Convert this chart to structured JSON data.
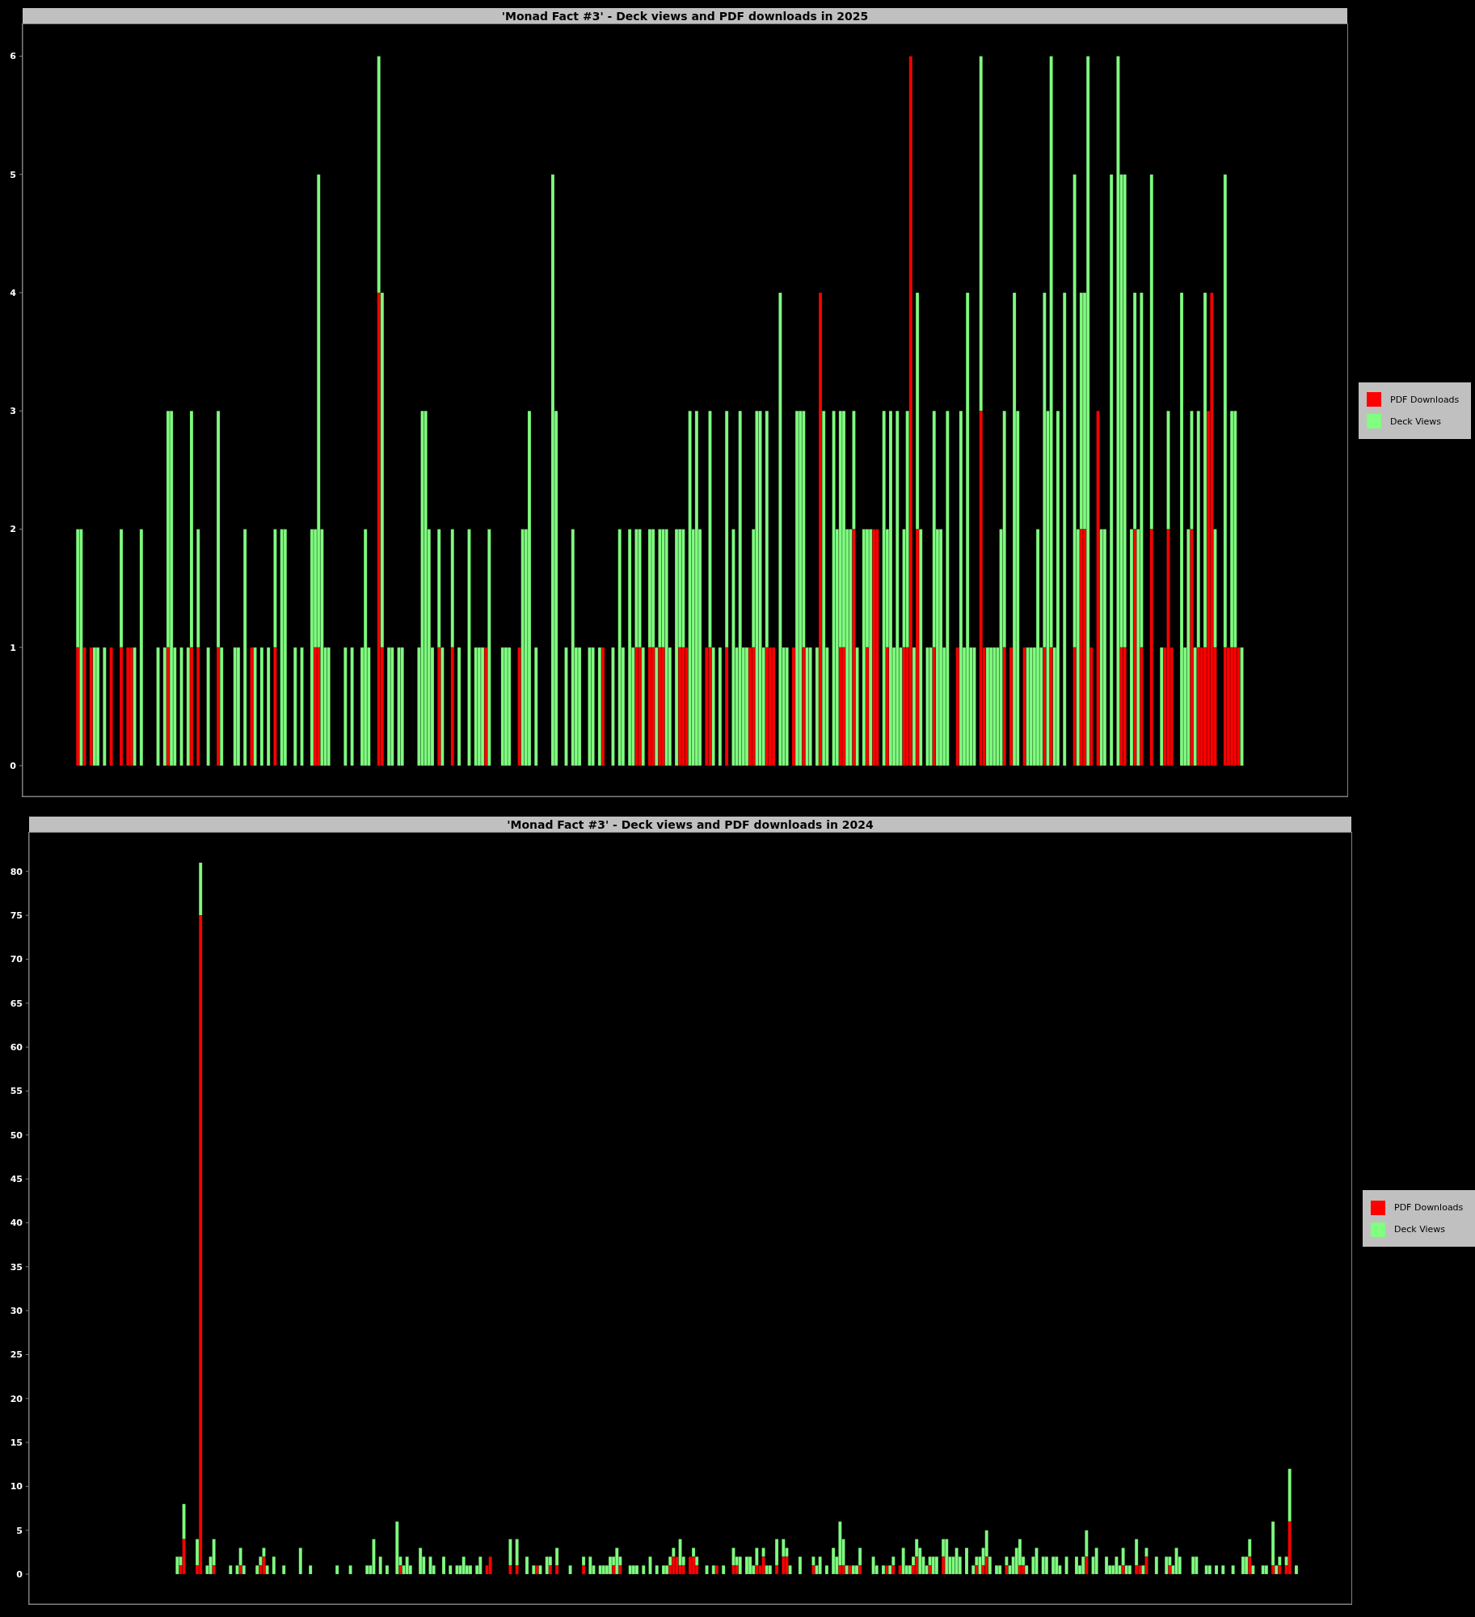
{
  "chart_data": [
    {
      "type": "bar",
      "title": "'Monad Fact #3' - Deck views and PDF downloads in 2025",
      "categories": [
        null,
        null,
        null,
        null,
        null,
        null,
        null,
        null,
        null,
        null,
        null,
        null,
        null,
        null,
        null,
        null,
        null,
        null,
        null,
        null,
        null,
        null,
        null,
        null,
        null,
        null,
        null,
        null,
        null,
        null,
        null,
        null,
        null,
        null,
        null,
        null,
        null,
        null,
        null,
        null,
        null,
        null,
        null,
        null,
        null,
        null,
        null,
        null,
        null,
        null,
        null,
        null,
        null,
        null,
        null,
        null,
        null,
        null,
        null,
        null,
        null,
        null,
        null,
        null,
        null,
        null,
        null,
        null,
        null,
        null,
        null,
        null,
        null,
        null,
        null,
        null,
        null,
        null,
        null,
        null,
        null,
        null,
        null,
        null,
        null,
        null,
        null,
        null,
        null,
        null,
        null,
        null,
        null,
        null,
        null,
        null,
        null,
        null,
        null,
        null,
        null,
        null,
        null,
        null,
        null,
        null,
        null,
        null,
        null,
        null,
        null,
        null,
        null,
        null,
        null,
        null,
        null,
        null,
        null,
        null,
        null,
        null,
        null,
        null,
        null,
        null,
        null,
        null,
        null,
        null,
        null,
        null,
        null,
        null,
        null,
        null,
        null,
        null,
        null,
        null,
        null,
        null,
        null,
        null,
        null,
        null,
        null,
        null,
        null,
        null,
        null,
        null,
        null,
        null,
        null,
        null,
        null,
        null,
        null,
        null,
        null,
        null,
        null,
        null,
        null,
        null,
        null,
        null,
        null,
        null,
        null,
        null,
        null,
        null,
        null,
        null,
        null,
        null,
        null,
        null,
        null,
        null,
        null,
        null,
        null,
        null,
        null,
        null,
        null,
        null,
        null,
        null,
        null,
        null,
        null,
        null,
        null,
        null,
        null,
        null,
        null,
        null,
        null,
        null,
        null,
        null,
        null,
        null,
        null,
        null,
        null,
        null,
        null,
        null,
        null,
        null,
        null,
        null,
        null,
        null,
        null,
        null,
        null,
        null,
        null,
        null,
        null,
        null,
        null,
        null,
        null,
        null,
        null,
        null,
        null,
        null,
        null,
        null,
        null,
        null,
        null,
        null,
        null,
        null,
        null,
        null,
        null,
        null,
        null,
        null,
        null,
        null,
        null,
        null,
        null,
        null,
        null,
        null,
        null,
        null,
        null,
        null,
        null,
        null,
        null,
        null,
        null,
        null,
        null,
        null,
        null,
        null,
        null,
        null,
        null,
        null,
        null,
        null,
        null,
        null,
        null,
        null,
        null,
        null,
        null,
        null,
        null,
        null,
        null,
        null,
        null,
        null,
        null,
        null,
        null,
        null,
        null,
        null,
        null,
        null,
        null,
        null,
        null,
        null,
        null,
        null,
        null,
        null,
        null,
        null,
        null,
        null,
        null,
        null,
        null,
        null,
        null,
        null,
        null,
        null,
        null,
        null,
        null,
        null,
        null,
        null,
        null,
        null,
        null,
        null,
        null,
        null,
        null,
        null,
        null,
        null,
        null,
        null,
        null,
        null,
        null,
        null,
        null,
        null,
        null,
        null,
        null,
        null,
        null,
        null,
        null,
        null,
        null,
        null,
        null,
        null,
        null,
        null,
        null,
        null,
        null,
        null,
        null,
        null,
        null,
        null,
        null,
        null,
        null,
        null,
        null,
        null,
        null,
        null,
        null,
        null,
        null,
        null,
        null,
        null,
        null,
        null,
        null,
        null,
        null,
        null,
        null,
        null,
        null,
        null,
        null,
        null,
        null,
        null,
        null,
        null
      ],
      "series": [
        {
          "name": "PDF Downloads",
          "color": "#ff0000",
          "values": [
            null,
            null,
            null,
            null,
            null,
            null,
            null,
            null,
            null,
            null,
            null,
            null,
            null,
            null,
            null,
            null,
            1,
            0,
            1,
            0,
            1,
            0,
            0,
            0,
            0,
            0,
            1,
            0,
            0,
            1,
            0,
            1,
            1,
            0,
            0,
            0,
            0,
            0,
            0,
            0,
            0,
            0,
            0,
            1,
            0,
            0,
            0,
            0,
            0,
            0,
            1,
            0,
            1,
            0,
            0,
            0,
            0,
            0,
            1,
            0,
            0,
            0,
            0,
            0,
            0,
            0,
            0,
            0,
            1,
            0,
            0,
            0,
            0,
            0,
            0,
            1,
            0,
            0,
            0,
            0,
            0,
            0,
            0,
            0,
            0,
            0,
            0,
            1,
            1,
            0,
            0,
            0,
            0,
            0,
            0,
            0,
            0,
            0,
            0,
            0,
            0,
            0,
            0,
            0,
            0,
            0,
            4,
            1,
            0,
            0,
            0,
            0,
            0,
            0,
            0,
            0,
            0,
            0,
            0,
            0,
            0,
            0,
            0,
            0,
            1,
            0,
            0,
            0,
            1,
            0,
            0,
            0,
            0,
            0,
            0,
            0,
            0,
            0,
            1,
            0,
            0,
            0,
            0,
            0,
            0,
            0,
            0,
            0,
            1,
            0,
            0,
            0,
            0,
            0,
            0,
            0,
            0,
            0,
            0,
            0,
            0,
            0,
            0,
            0,
            0,
            0,
            0,
            0,
            0,
            0,
            0,
            0,
            0,
            1,
            0,
            0,
            0,
            0,
            0,
            0,
            0,
            0,
            0,
            1,
            1,
            0,
            0,
            1,
            1,
            0,
            1,
            1,
            0,
            0,
            0,
            0,
            1,
            1,
            1,
            0,
            0,
            0,
            0,
            0,
            1,
            1,
            0,
            0,
            0,
            0,
            1,
            0,
            0,
            0,
            0,
            0,
            0,
            1,
            1,
            0,
            0,
            0,
            1,
            1,
            1,
            0,
            0,
            0,
            0,
            0,
            1,
            0,
            0,
            1,
            0,
            0,
            0,
            0,
            4,
            0,
            0,
            0,
            0,
            0,
            1,
            1,
            0,
            0,
            2,
            0,
            0,
            0,
            1,
            0,
            2,
            2,
            0,
            0,
            1,
            0,
            0,
            0,
            0,
            1,
            1,
            6,
            0,
            2,
            0,
            0,
            0,
            0,
            1,
            0,
            0,
            0,
            0,
            0,
            0,
            1,
            0,
            0,
            0,
            0,
            0,
            0,
            3,
            1,
            0,
            0,
            0,
            0,
            0,
            1,
            0,
            1,
            0,
            0,
            0,
            1,
            0,
            0,
            0,
            0,
            0,
            1,
            0,
            1,
            0,
            0,
            0,
            0,
            0,
            0,
            1,
            0,
            2,
            2,
            0,
            1,
            0,
            3,
            0,
            0,
            0,
            0,
            0,
            0,
            1,
            1,
            0,
            0,
            2,
            0,
            1,
            0,
            0,
            2,
            0,
            0,
            0,
            1,
            2,
            1,
            0,
            0,
            0,
            0,
            0,
            2,
            0,
            1,
            1,
            1,
            3,
            4,
            1,
            0,
            0,
            1,
            1,
            1,
            1,
            1,
            0,
            null,
            null,
            null,
            null,
            null,
            null,
            null,
            null,
            null,
            null,
            null,
            null,
            null,
            null,
            null,
            null,
            null,
            null,
            null,
            null,
            null,
            null,
            null,
            null,
            null,
            null,
            null,
            null,
            null,
            null,
            null
          ]
        },
        {
          "name": "Deck Views",
          "color": "#80ff80",
          "values": [
            null,
            null,
            null,
            null,
            null,
            null,
            null,
            null,
            null,
            null,
            null,
            null,
            null,
            null,
            null,
            null,
            1,
            2,
            0,
            0,
            0,
            1,
            1,
            0,
            1,
            0,
            0,
            0,
            0,
            1,
            0,
            0,
            0,
            1,
            0,
            2,
            0,
            0,
            0,
            0,
            1,
            0,
            1,
            2,
            3,
            1,
            0,
            1,
            0,
            1,
            2,
            0,
            1,
            0,
            0,
            1,
            0,
            0,
            2,
            1,
            0,
            0,
            0,
            1,
            1,
            0,
            2,
            0,
            0,
            1,
            0,
            1,
            0,
            1,
            0,
            1,
            0,
            2,
            2,
            0,
            0,
            1,
            0,
            1,
            0,
            0,
            2,
            1,
            4,
            2,
            1,
            1,
            0,
            0,
            0,
            0,
            1,
            0,
            1,
            0,
            0,
            1,
            2,
            1,
            0,
            0,
            2,
            3,
            0,
            1,
            1,
            0,
            1,
            1,
            0,
            0,
            0,
            0,
            1,
            3,
            3,
            2,
            1,
            0,
            1,
            1,
            0,
            0,
            1,
            0,
            1,
            0,
            0,
            2,
            0,
            1,
            1,
            1,
            0,
            2,
            0,
            0,
            0,
            1,
            1,
            1,
            0,
            0,
            0,
            2,
            2,
            3,
            0,
            1,
            0,
            0,
            0,
            0,
            5,
            3,
            0,
            0,
            1,
            0,
            2,
            1,
            1,
            0,
            0,
            1,
            1,
            0,
            1,
            0,
            0,
            0,
            1,
            0,
            2,
            1,
            0,
            2,
            1,
            1,
            1,
            1,
            0,
            1,
            1,
            1,
            1,
            1,
            2,
            1,
            0,
            2,
            1,
            1,
            0,
            3,
            2,
            3,
            2,
            0,
            0,
            2,
            1,
            0,
            1,
            0,
            2,
            0,
            2,
            1,
            3,
            1,
            1,
            0,
            1,
            3,
            3,
            1,
            2,
            0,
            0,
            0,
            4,
            1,
            1,
            0,
            0,
            3,
            3,
            2,
            1,
            1,
            0,
            1,
            0,
            3,
            1,
            0,
            3,
            2,
            2,
            2,
            2,
            2,
            1,
            1,
            0,
            2,
            1,
            2,
            0,
            0,
            0,
            3,
            1,
            3,
            1,
            3,
            1,
            1,
            2,
            0,
            1,
            2,
            2,
            0,
            1,
            1,
            2,
            2,
            2,
            1,
            3,
            0,
            0,
            0,
            3,
            1,
            4,
            1,
            1,
            0,
            3,
            0,
            1,
            1,
            1,
            1,
            2,
            2,
            0,
            0,
            4,
            3,
            0,
            0,
            1,
            1,
            1,
            2,
            1,
            3,
            3,
            5,
            1,
            3,
            0,
            4,
            0,
            0,
            4,
            2,
            2,
            2,
            6,
            0,
            0,
            0,
            2,
            2,
            0,
            5,
            0,
            6,
            4,
            4,
            0,
            2,
            2,
            2,
            3,
            0,
            0,
            3,
            0,
            0,
            1,
            0,
            1,
            0,
            0,
            0,
            4,
            1,
            2,
            1,
            1,
            2,
            0,
            3,
            0,
            0,
            1,
            0,
            0,
            4,
            0,
            2,
            2,
            0,
            1,
            null,
            null,
            null,
            null,
            null,
            null,
            null,
            null,
            null,
            null,
            null,
            null,
            null,
            null,
            null,
            null,
            null,
            null,
            null,
            null,
            null,
            null,
            null,
            null,
            null,
            null,
            null,
            null,
            null,
            null,
            null
          ]
        }
      ],
      "stacked": true,
      "ylim": [
        -0.26,
        6.27
      ],
      "yticks": [
        0,
        1,
        2,
        3,
        4,
        5,
        6
      ],
      "tick_labels": "y",
      "legend": "right"
    },
    {
      "type": "bar",
      "title": "'Monad Fact #3' - Deck views and PDF downloads in 2024",
      "categories": [
        null,
        null,
        null,
        null,
        null,
        null,
        null,
        null,
        null,
        null,
        null,
        null,
        null,
        null,
        null,
        null,
        null,
        null,
        null,
        null,
        null,
        null,
        null,
        null,
        null,
        null,
        null,
        null,
        null,
        null,
        null,
        null,
        null,
        null,
        null,
        null,
        null,
        null,
        null,
        null,
        null,
        null,
        null,
        null,
        null,
        null,
        null,
        null,
        null,
        null,
        null,
        null,
        null,
        null,
        null,
        null,
        null,
        null,
        null,
        null,
        null,
        null,
        null,
        null,
        null,
        null,
        null,
        null,
        null,
        null,
        null,
        null,
        null,
        null,
        null,
        null,
        null,
        null,
        null,
        null,
        null,
        null,
        null,
        null,
        null,
        null,
        null,
        null,
        null,
        null,
        null,
        null,
        null,
        null,
        null,
        null,
        null,
        null,
        null,
        null,
        null,
        null,
        null,
        null,
        null,
        null,
        null,
        null,
        null,
        null,
        null,
        null,
        null,
        null,
        null,
        null,
        null,
        null,
        null,
        null,
        null,
        null,
        null,
        null,
        null,
        null,
        null,
        null,
        null,
        null,
        null,
        null,
        null,
        null,
        null,
        null,
        null,
        null,
        null,
        null,
        null,
        null,
        null,
        null,
        null,
        null,
        null,
        null,
        null,
        null,
        null,
        null,
        null,
        null,
        null,
        null,
        null,
        null,
        null,
        null,
        null,
        null,
        null,
        null,
        null,
        null,
        null,
        null,
        null,
        null,
        null,
        null,
        null,
        null,
        null,
        null,
        null,
        null,
        null,
        null,
        null,
        null,
        null,
        null,
        null,
        null,
        null,
        null,
        null,
        null,
        null,
        null,
        null,
        null,
        null,
        null,
        null,
        null,
        null,
        null,
        null,
        null,
        null,
        null,
        null,
        null,
        null,
        null,
        null,
        null,
        null,
        null,
        null,
        null,
        null,
        null,
        null,
        null,
        null,
        null,
        null,
        null,
        null,
        null,
        null,
        null,
        null,
        null,
        null,
        null,
        null,
        null,
        null,
        null,
        null,
        null,
        null,
        null,
        null,
        null,
        null,
        null,
        null,
        null,
        null,
        null,
        null,
        null,
        null,
        null,
        null,
        null,
        null,
        null,
        null,
        null,
        null,
        null,
        null,
        null,
        null,
        null,
        null,
        null,
        null,
        null,
        null,
        null,
        null,
        null,
        null,
        null,
        null,
        null,
        null,
        null,
        null,
        null,
        null,
        null,
        null,
        null,
        null,
        null,
        null,
        null,
        null,
        null,
        null,
        null,
        null,
        null,
        null,
        null,
        null,
        null,
        null,
        null,
        null,
        null,
        null,
        null,
        null,
        null,
        null,
        null,
        null,
        null,
        null,
        null,
        null,
        null,
        null,
        null,
        null,
        null,
        null,
        null,
        null,
        null,
        null,
        null,
        null,
        null,
        null,
        null,
        null,
        null,
        null,
        null,
        null,
        null,
        null,
        null,
        null,
        null,
        null,
        null,
        null,
        null,
        null,
        null,
        null,
        null,
        null,
        null,
        null,
        null,
        null,
        null,
        null,
        null,
        null,
        null,
        null,
        null,
        null,
        null,
        null,
        null,
        null,
        null,
        null,
        null,
        null,
        null,
        null,
        null,
        null,
        null,
        null,
        null,
        null,
        null,
        null,
        null,
        null,
        null,
        null,
        null,
        null,
        null,
        null,
        null,
        null,
        null,
        null,
        null,
        null,
        null,
        null,
        null,
        null,
        null,
        null,
        null,
        null
      ],
      "series": [
        {
          "name": "PDF Downloads",
          "color": "#ff0000",
          "values": [
            null,
            null,
            null,
            null,
            null,
            null,
            null,
            null,
            null,
            null,
            null,
            null,
            null,
            null,
            null,
            null,
            null,
            null,
            null,
            null,
            null,
            null,
            null,
            null,
            null,
            null,
            null,
            null,
            null,
            null,
            null,
            null,
            null,
            null,
            null,
            null,
            null,
            null,
            null,
            null,
            null,
            null,
            null,
            null,
            0,
            1,
            4,
            0,
            0,
            0,
            1,
            75,
            0,
            0,
            0,
            1,
            0,
            0,
            0,
            0,
            0,
            0,
            0,
            1,
            0,
            0,
            0,
            0,
            0,
            1,
            2,
            0,
            0,
            0,
            0,
            0,
            0,
            0,
            0,
            0,
            0,
            0,
            0,
            0,
            0,
            0,
            0,
            0,
            0,
            0,
            0,
            0,
            0,
            0,
            0,
            0,
            0,
            0,
            0,
            0,
            0,
            0,
            0,
            0,
            0,
            0,
            0,
            0,
            0,
            0,
            0,
            1,
            0,
            0,
            0,
            0,
            0,
            0,
            0,
            0,
            0,
            0,
            0,
            0,
            0,
            0,
            0,
            0,
            0,
            0,
            0,
            0,
            0,
            0,
            0,
            0,
            0,
            1,
            2,
            0,
            0,
            0,
            0,
            0,
            1,
            0,
            1,
            0,
            0,
            0,
            0,
            0,
            1,
            0,
            0,
            0,
            1,
            0,
            1,
            0,
            0,
            0,
            0,
            0,
            0,
            0,
            1,
            0,
            0,
            0,
            0,
            0,
            0,
            0,
            0,
            1,
            0,
            1,
            0,
            0,
            0,
            0,
            0,
            0,
            0,
            0,
            0,
            0,
            0,
            0,
            0,
            0,
            1,
            2,
            2,
            1,
            1,
            0,
            2,
            2,
            1,
            0,
            0,
            0,
            0,
            0,
            1,
            0,
            0,
            0,
            0,
            1,
            1,
            0,
            0,
            0,
            0,
            0,
            1,
            1,
            2,
            0,
            0,
            0,
            1,
            0,
            2,
            2,
            0,
            0,
            0,
            0,
            0,
            0,
            0,
            1,
            0,
            0,
            0,
            0,
            0,
            0,
            0,
            1,
            1,
            0,
            1,
            0,
            0,
            1,
            0,
            0,
            0,
            0,
            0,
            0,
            0,
            1,
            0,
            1,
            0,
            1,
            0,
            0,
            0,
            1,
            2,
            0,
            0,
            0,
            1,
            0,
            0,
            0,
            2,
            0,
            0,
            0,
            0,
            0,
            0,
            0,
            0,
            0,
            1,
            0,
            1,
            2,
            0,
            0,
            0,
            0,
            0,
            1,
            0,
            0,
            0,
            1,
            1,
            0,
            0,
            0,
            0,
            0,
            0,
            0,
            0,
            0,
            0,
            0,
            0,
            0,
            0,
            0,
            0,
            0,
            0,
            2,
            0,
            0,
            0,
            0,
            0,
            0,
            0,
            0,
            0,
            0,
            1,
            0,
            0,
            0,
            1,
            1,
            0,
            2,
            0,
            0,
            0,
            0,
            0,
            0,
            1,
            0,
            0,
            0,
            0,
            0,
            0,
            0,
            0,
            0,
            0,
            0,
            0,
            0,
            0,
            0,
            0,
            0,
            0,
            0,
            0,
            0,
            0,
            0,
            2,
            0,
            0,
            0,
            0,
            0,
            0,
            1,
            0,
            1,
            0,
            1,
            6,
            0,
            0,
            null,
            null,
            null,
            null,
            null,
            null,
            null,
            null,
            null,
            null,
            null,
            null,
            null,
            null,
            null,
            null
          ]
        },
        {
          "name": "Deck Views",
          "color": "#80ff80",
          "values": [
            null,
            null,
            null,
            null,
            null,
            null,
            null,
            null,
            null,
            null,
            null,
            null,
            null,
            null,
            null,
            null,
            null,
            null,
            null,
            null,
            null,
            null,
            null,
            null,
            null,
            null,
            null,
            null,
            null,
            null,
            null,
            null,
            null,
            null,
            null,
            null,
            null,
            null,
            null,
            null,
            null,
            null,
            null,
            null,
            2,
            1,
            4,
            0,
            0,
            0,
            3,
            6,
            0,
            1,
            2,
            3,
            0,
            0,
            0,
            0,
            1,
            0,
            1,
            2,
            1,
            0,
            0,
            0,
            1,
            1,
            1,
            1,
            0,
            2,
            0,
            0,
            1,
            0,
            0,
            0,
            0,
            3,
            0,
            0,
            1,
            0,
            0,
            0,
            0,
            0,
            0,
            0,
            1,
            0,
            0,
            0,
            1,
            0,
            0,
            0,
            0,
            1,
            1,
            4,
            0,
            2,
            0,
            1,
            0,
            0,
            6,
            1,
            1,
            2,
            1,
            0,
            0,
            3,
            2,
            0,
            2,
            1,
            0,
            0,
            2,
            0,
            1,
            0,
            1,
            1,
            2,
            1,
            1,
            0,
            1,
            2,
            0,
            0,
            0,
            0,
            0,
            0,
            0,
            0,
            3,
            0,
            3,
            0,
            0,
            2,
            0,
            1,
            0,
            1,
            0,
            2,
            1,
            0,
            2,
            0,
            0,
            0,
            1,
            0,
            0,
            0,
            1,
            0,
            2,
            1,
            0,
            1,
            1,
            1,
            2,
            1,
            3,
            1,
            0,
            0,
            1,
            1,
            1,
            0,
            1,
            0,
            2,
            0,
            1,
            0,
            1,
            1,
            1,
            1,
            0,
            3,
            1,
            0,
            0,
            1,
            1,
            0,
            0,
            1,
            0,
            1,
            0,
            0,
            1,
            0,
            0,
            2,
            1,
            2,
            0,
            2,
            2,
            1,
            2,
            0,
            1,
            1,
            1,
            0,
            3,
            0,
            2,
            1,
            1,
            0,
            0,
            2,
            0,
            0,
            0,
            1,
            1,
            2,
            0,
            1,
            0,
            3,
            2,
            5,
            3,
            1,
            0,
            1,
            1,
            2,
            0,
            0,
            0,
            2,
            1,
            0,
            1,
            0,
            1,
            1,
            0,
            0,
            3,
            1,
            1,
            1,
            2,
            3,
            2,
            1,
            1,
            2,
            2,
            0,
            2,
            4,
            2,
            2,
            3,
            2,
            0,
            3,
            0,
            1,
            1,
            2,
            2,
            3,
            2,
            0,
            1,
            1,
            0,
            1,
            1,
            2,
            3,
            3,
            1,
            1,
            0,
            2,
            3,
            0,
            2,
            2,
            0,
            2,
            2,
            1,
            0,
            2,
            0,
            0,
            2,
            1,
            2,
            3,
            0,
            2,
            3,
            0,
            0,
            2,
            1,
            1,
            2,
            1,
            2,
            1,
            1,
            0,
            3,
            0,
            1,
            1,
            0,
            0,
            2,
            0,
            0,
            2,
            1,
            1,
            3,
            2,
            0,
            0,
            0,
            2,
            2,
            0,
            0,
            1,
            1,
            0,
            1,
            0,
            1,
            0,
            0,
            1,
            0,
            0,
            2,
            2,
            2,
            1,
            0,
            0,
            1,
            1,
            0,
            5,
            1,
            1,
            0,
            1,
            6,
            0,
            1,
            null,
            null,
            null,
            null,
            null,
            null,
            null,
            null,
            null,
            null,
            null,
            null,
            null,
            null,
            null,
            null
          ]
        }
      ],
      "stacked": true,
      "ylim": [
        -3.4,
        84.4
      ],
      "yticks": [
        0,
        5,
        10,
        15,
        20,
        25,
        30,
        35,
        40,
        45,
        50,
        55,
        60,
        65,
        70,
        75,
        80
      ],
      "tick_labels": "y",
      "legend": "right"
    }
  ]
}
